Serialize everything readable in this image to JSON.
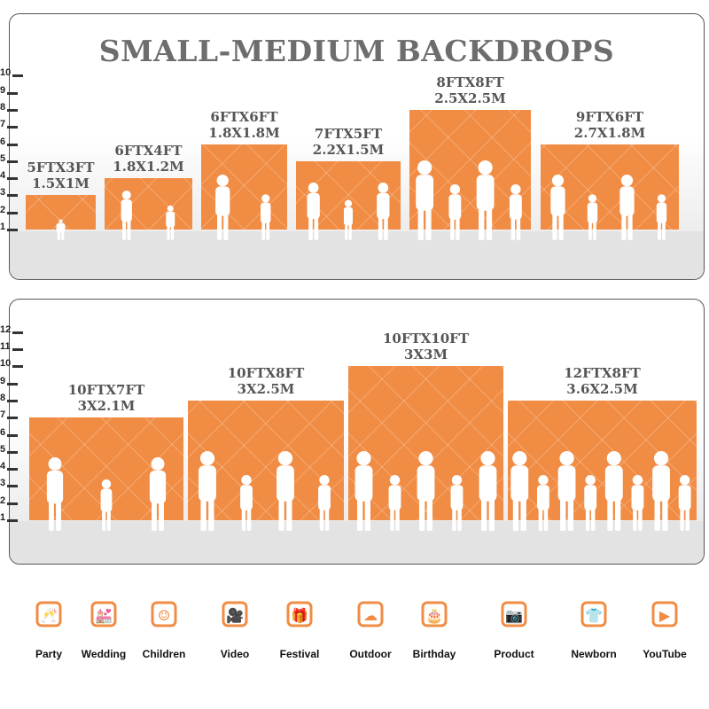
{
  "accent_color": "#f08c44",
  "top_panel": {
    "title": "SMALL-MEDIUM BACKDROPS",
    "scale_max": 10,
    "boxes": [
      {
        "label_ft": "5FTX3FT",
        "label_m": "1.5X1M",
        "height_ft": 3,
        "people": 1
      },
      {
        "label_ft": "6FTX4FT",
        "label_m": "1.8X1.2M",
        "height_ft": 4,
        "people": 2
      },
      {
        "label_ft": "6FTX6FT",
        "label_m": "1.8X1.8M",
        "height_ft": 6,
        "people": 2
      },
      {
        "label_ft": "7FTX5FT",
        "label_m": "2.2X1.5M",
        "height_ft": 5,
        "people": 3
      },
      {
        "label_ft": "8FTX8FT",
        "label_m": "2.5X2.5M",
        "height_ft": 8,
        "people": 4
      },
      {
        "label_ft": "9FTX6FT",
        "label_m": "2.7X1.8M",
        "height_ft": 6,
        "people": 4
      }
    ]
  },
  "bottom_panel": {
    "scale_max": 12,
    "boxes": [
      {
        "label_ft": "10FTX7FT",
        "label_m": "3X2.1M",
        "height_ft": 7,
        "people": 3
      },
      {
        "label_ft": "10FTX8FT",
        "label_m": "3X2.5M",
        "height_ft": 8,
        "people": 4
      },
      {
        "label_ft": "10FTX10FT",
        "label_m": "3X3M",
        "height_ft": 10,
        "people": 5
      },
      {
        "label_ft": "12FTX8FT",
        "label_m": "3.6X2.5M",
        "height_ft": 8,
        "people": 8
      }
    ]
  },
  "uses": [
    {
      "label": "Party",
      "icon": "champagne-glasses-icon"
    },
    {
      "label": "Wedding",
      "icon": "wedding-couple-icon"
    },
    {
      "label": "Children",
      "icon": "children-faces-icon"
    },
    {
      "label": "Video",
      "icon": "video-camera-icon"
    },
    {
      "label": "Festival",
      "icon": "gift-box-icon"
    },
    {
      "label": "Outdoor",
      "icon": "cloud-icon"
    },
    {
      "label": "Birthday",
      "icon": "birthday-cake-icon"
    },
    {
      "label": "Product",
      "icon": "camera-icon"
    },
    {
      "label": "Newborn",
      "icon": "baby-onesie-icon"
    },
    {
      "label": "YouTube",
      "icon": "play-button-icon"
    }
  ]
}
